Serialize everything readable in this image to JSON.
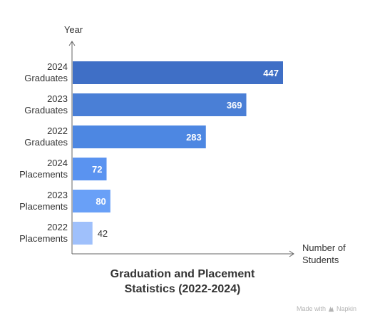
{
  "chart_data": {
    "type": "bar",
    "orientation": "horizontal",
    "title": "Graduation and Placement Statistics (2022-2024)",
    "title_lines": [
      "Graduation and Placement",
      "Statistics (2022-2024)"
    ],
    "xlabel": "Number of Students",
    "xlabel_lines": [
      "Number of",
      "Students"
    ],
    "ylabel": "Year",
    "categories": [
      "2024 Graduates",
      "2023 Graduates",
      "2022 Graduates",
      "2024 Placements",
      "2023 Placements",
      "2022 Placements"
    ],
    "category_lines": [
      [
        "2024",
        "Graduates"
      ],
      [
        "2023",
        "Graduates"
      ],
      [
        "2022",
        "Graduates"
      ],
      [
        "2024",
        "Placements"
      ],
      [
        "2023",
        "Placements"
      ],
      [
        "2022",
        "Placements"
      ]
    ],
    "values": [
      447,
      369,
      283,
      72,
      80,
      42
    ],
    "colors": [
      "#3f6fc6",
      "#4a7fd6",
      "#4d87e2",
      "#5a93f0",
      "#69a0f7",
      "#9fc0fb"
    ],
    "xlim": [
      0,
      447
    ],
    "grid": false,
    "legend": "none"
  },
  "credit": {
    "text": "Made with",
    "brand": "Napkin",
    "icon": "napkin-logo-icon"
  }
}
